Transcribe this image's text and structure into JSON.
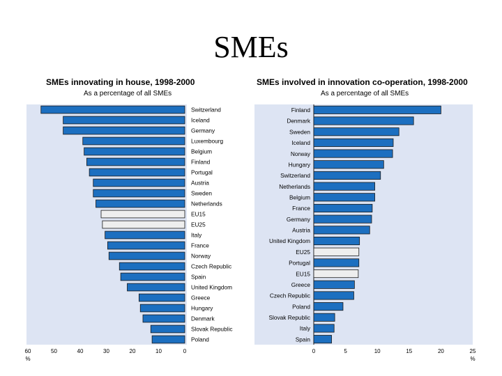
{
  "slide": {
    "title": "SMEs"
  },
  "chart_data": [
    {
      "type": "bar",
      "orientation": "horizontal",
      "direction": "right-to-left",
      "title": "SMEs innovating in house, 1998-2000",
      "subtitle": "As a percentage of all SMEs",
      "xlabel": "%",
      "xlim": [
        0,
        60
      ],
      "xticks": [
        60,
        50,
        40,
        30,
        20,
        10,
        0
      ],
      "categories": [
        "Switzerland",
        "Iceland",
        "Germany",
        "Luxembourg",
        "Belgium",
        "Finland",
        "Portugal",
        "Austria",
        "Sweden",
        "Netherlands",
        "EU15",
        "EU25",
        "Italy",
        "France",
        "Norway",
        "Czech Republic",
        "Spain",
        "United Kingdom",
        "Greece",
        "Hungary",
        "Denmark",
        "Slovak Republic",
        "Poland"
      ],
      "values": [
        55,
        46.5,
        46.5,
        39,
        38.5,
        37.5,
        36.5,
        35,
        35,
        34,
        32,
        31.5,
        30.5,
        29.5,
        29,
        25,
        24.5,
        22,
        17.5,
        17,
        16,
        13,
        12.5
      ],
      "highlight": [
        "EU15",
        "EU25"
      ],
      "colors": {
        "bar": "#1c6fc0",
        "highlight": "#eeeeee",
        "background": "#dde4f3"
      }
    },
    {
      "type": "bar",
      "orientation": "horizontal",
      "title": "SMEs involved in innovation co-operation, 1998-2000",
      "subtitle": "As a percentage of all SMEs",
      "xlabel": "%",
      "xlim": [
        0,
        25
      ],
      "xticks": [
        0,
        5,
        10,
        15,
        20,
        25
      ],
      "categories": [
        "Finland",
        "Denmark",
        "Sweden",
        "Iceland",
        "Norway",
        "Hungary",
        "Switzerland",
        "Netherlands",
        "Belgium",
        "France",
        "Germany",
        "Austria",
        "United Kingdom",
        "EU25",
        "Portugal",
        "EU15",
        "Greece",
        "Czech Republic",
        "Poland",
        "Slovak Republic",
        "Italy",
        "Spain"
      ],
      "values": [
        20,
        15.7,
        13.4,
        12.5,
        12.4,
        11,
        10.5,
        9.6,
        9.6,
        9.2,
        9.1,
        8.8,
        7.2,
        7.1,
        7.1,
        7.0,
        6.4,
        6.3,
        4.6,
        3.3,
        3.2,
        2.8
      ],
      "highlight": [
        "EU25",
        "EU15"
      ],
      "colors": {
        "bar": "#1c6fc0",
        "highlight": "#eeeeee",
        "background": "#dde4f3"
      }
    }
  ]
}
